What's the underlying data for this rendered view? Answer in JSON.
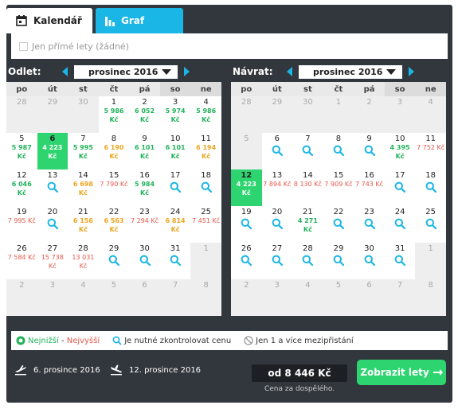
{
  "tabs": {
    "calendar": "Kalendář",
    "graph": "Graf"
  },
  "filter": {
    "direct_only": "Jen přímé lety (žádné)"
  },
  "weekdays": [
    "po",
    "út",
    "st",
    "čt",
    "pá",
    "so",
    "ne"
  ],
  "departure": {
    "label": "Odlet:",
    "month": "prosinec 2016",
    "cells": [
      [
        {
          "d": "28",
          "o": 1
        },
        {
          "d": "29",
          "o": 1
        },
        {
          "d": "30",
          "o": 1
        },
        {
          "d": "1",
          "p": "5 986",
          "c": "g"
        },
        {
          "d": "2",
          "p": "6 052",
          "c": "g"
        },
        {
          "d": "3",
          "p": "5 974",
          "c": "g"
        },
        {
          "d": "4",
          "p": "5 986",
          "c": "g"
        }
      ],
      [
        {
          "d": "5",
          "p": "5 987",
          "c": "g"
        },
        {
          "d": "6",
          "p": "4 223",
          "c": "g",
          "s": 1
        },
        {
          "d": "7",
          "p": "5 995",
          "c": "g"
        },
        {
          "d": "8",
          "p": "6 190",
          "c": "o"
        },
        {
          "d": "9",
          "p": "6 101",
          "c": "g"
        },
        {
          "d": "10",
          "p": "6 101",
          "c": "g"
        },
        {
          "d": "11",
          "p": "6 194",
          "c": "o"
        }
      ],
      [
        {
          "d": "12",
          "p": "6 046",
          "c": "g"
        },
        {
          "d": "13",
          "q": 1
        },
        {
          "d": "14",
          "p": "6 698",
          "c": "o"
        },
        {
          "d": "15",
          "p": "7 790",
          "c": "r"
        },
        {
          "d": "16",
          "p": "5 984",
          "c": "g"
        },
        {
          "d": "17",
          "q": 1
        },
        {
          "d": "18",
          "q": 1
        }
      ],
      [
        {
          "d": "19",
          "p": "7 995",
          "c": "r"
        },
        {
          "d": "20",
          "q": 1
        },
        {
          "d": "21",
          "p": "6 156",
          "c": "o"
        },
        {
          "d": "22",
          "p": "6 563",
          "c": "o"
        },
        {
          "d": "23",
          "p": "7 294",
          "c": "r"
        },
        {
          "d": "24",
          "p": "6 814",
          "c": "o"
        },
        {
          "d": "25",
          "p": "7 451",
          "c": "r"
        }
      ],
      [
        {
          "d": "26",
          "p": "7 584",
          "c": "r"
        },
        {
          "d": "27",
          "p": "15 738",
          "c": "r"
        },
        {
          "d": "28",
          "p": "13 031",
          "c": "r"
        },
        {
          "d": "29",
          "q": 1
        },
        {
          "d": "30",
          "q": 1
        },
        {
          "d": "31",
          "q": 1
        },
        {
          "d": "1",
          "o": 1
        }
      ],
      [
        {
          "d": "2",
          "o": 1
        },
        {
          "d": "3",
          "o": 1
        },
        {
          "d": "4",
          "o": 1
        },
        {
          "d": "5",
          "o": 1
        },
        {
          "d": "6",
          "o": 1
        },
        {
          "d": "7",
          "o": 1
        },
        {
          "d": "8",
          "o": 1
        }
      ]
    ]
  },
  "return": {
    "label": "Návrat:",
    "month": "prosinec 2016",
    "cells": [
      [
        {
          "d": "28",
          "o": 1
        },
        {
          "d": "29",
          "o": 1
        },
        {
          "d": "30",
          "o": 1
        },
        {
          "d": "1",
          "o": 1
        },
        {
          "d": "2",
          "o": 1
        },
        {
          "d": "3",
          "o": 1
        },
        {
          "d": "4",
          "o": 1
        }
      ],
      [
        {
          "d": "5",
          "o": 1
        },
        {
          "d": "6",
          "q": 1
        },
        {
          "d": "7",
          "q": 1
        },
        {
          "d": "8",
          "q": 1
        },
        {
          "d": "9",
          "q": 1
        },
        {
          "d": "10",
          "p": "4 395",
          "c": "g"
        },
        {
          "d": "11",
          "p": "7 752",
          "c": "r"
        }
      ],
      [
        {
          "d": "12",
          "p": "4 223",
          "c": "g",
          "s": 1
        },
        {
          "d": "13",
          "p": "7 894",
          "c": "r"
        },
        {
          "d": "14",
          "p": "8 130",
          "c": "r"
        },
        {
          "d": "15",
          "p": "7 909",
          "c": "r"
        },
        {
          "d": "16",
          "p": "7 743",
          "c": "r"
        },
        {
          "d": "17",
          "q": 1
        },
        {
          "d": "18",
          "q": 1
        }
      ],
      [
        {
          "d": "19",
          "q": 1
        },
        {
          "d": "20",
          "q": 1
        },
        {
          "d": "21",
          "p": "4 271",
          "c": "g"
        },
        {
          "d": "22",
          "q": 1
        },
        {
          "d": "23",
          "q": 1
        },
        {
          "d": "24",
          "q": 1
        },
        {
          "d": "25",
          "q": 1
        }
      ],
      [
        {
          "d": "26",
          "q": 1
        },
        {
          "d": "27",
          "q": 1
        },
        {
          "d": "28",
          "q": 1
        },
        {
          "d": "29",
          "q": 1
        },
        {
          "d": "30",
          "q": 1
        },
        {
          "d": "31",
          "q": 1
        },
        {
          "d": "1",
          "o": 1
        }
      ],
      [
        {
          "d": "2",
          "o": 1
        },
        {
          "d": "3",
          "o": 1
        },
        {
          "d": "4",
          "o": 1
        },
        {
          "d": "5",
          "o": 1
        },
        {
          "d": "6",
          "o": 1
        },
        {
          "d": "7",
          "o": 1
        },
        {
          "d": "8",
          "o": 1
        }
      ]
    ]
  },
  "currency": "Kč",
  "legend": {
    "lowest": "Nejnižší",
    "separator": " - ",
    "highest": "Nejvyšší",
    "check_price": "Je nutné zkontrolovat cenu",
    "stops": "Jen 1 a více mezipřistání"
  },
  "footer": {
    "outbound_date": "6. prosince 2016",
    "return_date": "12. prosince 2016",
    "price": "od 8 446 Kč",
    "price_note": "Cena za dospělého.",
    "cta": "Zobrazit lety"
  },
  "colors": {
    "green": "#21b35a",
    "orange": "#f0a51e",
    "red": "#e8574b",
    "accent": "#1ab6e5",
    "selected": "#2ed46f"
  }
}
